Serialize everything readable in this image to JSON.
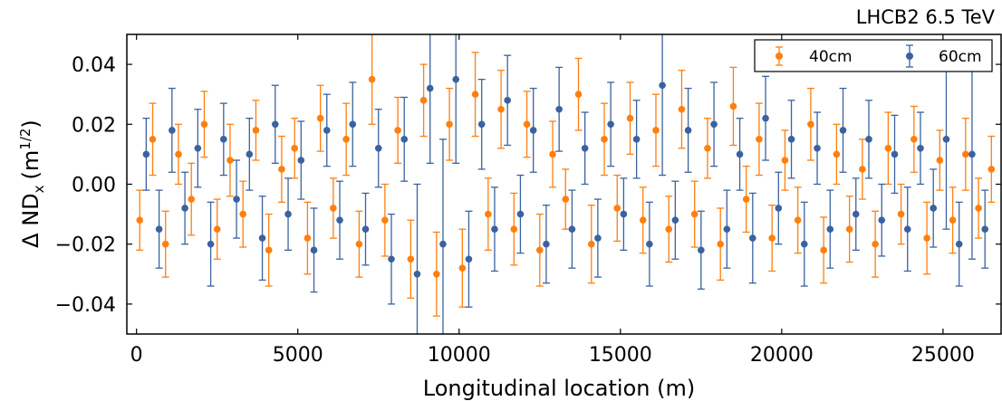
{
  "chart_data": {
    "type": "scatter",
    "title": "LHCB2 6.5 TeV",
    "xlabel": "Longitudinal location (m)",
    "ylabel_main": "Δ ND",
    "ylabel_sub": "x",
    "ylabel_unit_open": "(m",
    "ylabel_unit_sup": "1/2",
    "ylabel_unit_close": ")",
    "xlim": [
      -300,
      26800
    ],
    "ylim": [
      -0.05,
      0.05
    ],
    "x_ticks": [
      {
        "value": 0,
        "label": "0"
      },
      {
        "value": 5000,
        "label": "5000"
      },
      {
        "value": 10000,
        "label": "10000"
      },
      {
        "value": 15000,
        "label": "15000"
      },
      {
        "value": 20000,
        "label": "20000"
      },
      {
        "value": 25000,
        "label": "25000"
      }
    ],
    "y_ticks": [
      {
        "value": 0.04,
        "label": "0.04"
      },
      {
        "value": 0.02,
        "label": "0.02"
      },
      {
        "value": 0.0,
        "label": "0.00"
      },
      {
        "value": -0.02,
        "label": "−0.02"
      },
      {
        "value": -0.04,
        "label": "−0.04"
      }
    ],
    "legend_position": "top-right",
    "grid": false,
    "series": [
      {
        "name": "40cm",
        "color": "#ff7f0e",
        "x": [
          100,
          500,
          900,
          1300,
          1700,
          2100,
          2500,
          2900,
          3300,
          3700,
          4100,
          4500,
          4900,
          5300,
          5700,
          6100,
          6500,
          6900,
          7300,
          7700,
          8100,
          8500,
          8900,
          9300,
          9700,
          10100,
          10500,
          10900,
          11300,
          11700,
          12100,
          12500,
          12900,
          13300,
          13700,
          14100,
          14500,
          14900,
          15300,
          15700,
          16100,
          16500,
          16900,
          17300,
          17700,
          18100,
          18500,
          18900,
          19300,
          19700,
          20100,
          20500,
          20900,
          21300,
          21700,
          22100,
          22500,
          22900,
          23300,
          23700,
          24100,
          24500,
          24900,
          25300,
          25700,
          26100,
          26500
        ],
        "y": [
          -0.012,
          0.015,
          -0.02,
          0.01,
          -0.005,
          0.02,
          -0.015,
          0.008,
          -0.01,
          0.018,
          -0.022,
          0.005,
          0.012,
          -0.018,
          0.022,
          -0.008,
          0.015,
          -0.02,
          0.035,
          -0.012,
          0.018,
          -0.025,
          0.028,
          -0.03,
          0.02,
          -0.028,
          0.03,
          -0.01,
          0.025,
          -0.015,
          0.02,
          -0.022,
          0.01,
          -0.005,
          0.03,
          -0.02,
          0.015,
          -0.008,
          0.022,
          -0.012,
          0.018,
          -0.015,
          0.025,
          -0.01,
          0.012,
          -0.02,
          0.026,
          -0.005,
          0.015,
          -0.018,
          0.008,
          -0.012,
          0.02,
          -0.022,
          0.01,
          -0.015,
          0.005,
          -0.02,
          0.012,
          -0.01,
          0.015,
          -0.018,
          0.008,
          -0.012,
          0.01,
          -0.008,
          0.005
        ],
        "err": [
          0.01,
          0.012,
          0.011,
          0.01,
          0.012,
          0.011,
          0.01,
          0.012,
          0.011,
          0.01,
          0.012,
          0.011,
          0.01,
          0.012,
          0.011,
          0.01,
          0.012,
          0.011,
          0.015,
          0.012,
          0.011,
          0.013,
          0.012,
          0.014,
          0.012,
          0.013,
          0.014,
          0.012,
          0.013,
          0.012,
          0.011,
          0.012,
          0.011,
          0.01,
          0.012,
          0.013,
          0.012,
          0.011,
          0.012,
          0.011,
          0.012,
          0.011,
          0.013,
          0.011,
          0.01,
          0.012,
          0.013,
          0.011,
          0.012,
          0.011,
          0.01,
          0.011,
          0.012,
          0.011,
          0.01,
          0.011,
          0.01,
          0.011,
          0.012,
          0.01,
          0.011,
          0.012,
          0.01,
          0.011,
          0.012,
          0.01,
          0.011
        ]
      },
      {
        "name": "60cm",
        "color": "#3a62a0",
        "x": [
          300,
          700,
          1100,
          1500,
          1900,
          2300,
          2700,
          3100,
          3500,
          3900,
          4300,
          4700,
          5100,
          5500,
          5900,
          6300,
          6700,
          7100,
          7500,
          7900,
          8300,
          8700,
          9100,
          9500,
          9900,
          10300,
          10700,
          11100,
          11500,
          11900,
          12300,
          12700,
          13100,
          13500,
          13900,
          14300,
          14700,
          15100,
          15500,
          15900,
          16300,
          16700,
          17100,
          17500,
          17900,
          18300,
          18700,
          19100,
          19500,
          19900,
          20300,
          20700,
          21100,
          21500,
          21900,
          22300,
          22700,
          23100,
          23500,
          23900,
          24300,
          24700,
          25100,
          25500,
          25900,
          26300
        ],
        "y": [
          0.01,
          -0.015,
          0.018,
          -0.008,
          0.012,
          -0.02,
          0.015,
          -0.005,
          0.01,
          -0.018,
          0.02,
          -0.01,
          0.008,
          -0.022,
          0.018,
          -0.012,
          0.02,
          -0.015,
          0.012,
          -0.025,
          0.015,
          -0.03,
          0.032,
          -0.02,
          0.035,
          -0.025,
          0.02,
          -0.015,
          0.028,
          -0.01,
          0.018,
          -0.02,
          0.025,
          -0.015,
          0.012,
          -0.018,
          0.02,
          -0.01,
          0.015,
          -0.02,
          0.033,
          -0.012,
          0.018,
          -0.022,
          0.02,
          -0.015,
          0.01,
          -0.018,
          0.022,
          -0.008,
          0.015,
          -0.02,
          0.012,
          -0.015,
          0.018,
          -0.01,
          0.015,
          -0.012,
          0.01,
          -0.015,
          0.012,
          -0.008,
          0.015,
          -0.02,
          0.01,
          -0.015
        ],
        "err": [
          0.012,
          0.013,
          0.014,
          0.012,
          0.013,
          0.014,
          0.012,
          0.013,
          0.012,
          0.014,
          0.013,
          0.012,
          0.013,
          0.014,
          0.012,
          0.013,
          0.014,
          0.012,
          0.013,
          0.015,
          0.014,
          0.03,
          0.025,
          0.035,
          0.028,
          0.016,
          0.015,
          0.014,
          0.015,
          0.013,
          0.014,
          0.013,
          0.014,
          0.013,
          0.012,
          0.013,
          0.014,
          0.012,
          0.013,
          0.014,
          0.03,
          0.013,
          0.014,
          0.013,
          0.014,
          0.013,
          0.012,
          0.015,
          0.014,
          0.012,
          0.013,
          0.014,
          0.012,
          0.013,
          0.014,
          0.012,
          0.013,
          0.012,
          0.013,
          0.014,
          0.012,
          0.013,
          0.03,
          0.014,
          0.035,
          0.013
        ]
      }
    ]
  }
}
